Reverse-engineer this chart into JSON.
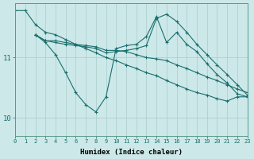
{
  "bg_color": "#cce8e8",
  "grid_color": "#aacccc",
  "line_color": "#1a6e6e",
  "xlabel": "Humidex (Indice chaleur)",
  "yticks": [
    10,
    11
  ],
  "xlim": [
    0,
    23
  ],
  "ylim": [
    9.7,
    11.9
  ],
  "figsize": [
    3.2,
    2.0
  ],
  "dpi": 100,
  "series": [
    {
      "x": [
        0,
        1,
        2,
        3,
        4,
        5,
        6,
        7,
        8,
        9,
        10,
        11,
        12,
        13,
        14,
        15,
        16,
        17,
        18,
        19,
        20,
        21,
        22,
        23
      ],
      "y": [
        11.78,
        11.78,
        11.55,
        11.42,
        11.38,
        11.3,
        11.22,
        11.15,
        11.08,
        11.0,
        10.95,
        10.88,
        10.82,
        10.75,
        10.7,
        10.62,
        10.55,
        10.48,
        10.42,
        10.38,
        10.32,
        10.28,
        10.35,
        10.35
      ]
    },
    {
      "x": [
        2,
        3,
        4,
        5,
        6,
        7,
        8,
        9,
        10,
        11,
        12,
        13,
        14,
        15,
        16,
        17,
        18,
        19,
        20,
        21,
        22,
        23
      ],
      "y": [
        11.38,
        11.25,
        11.05,
        10.75,
        10.42,
        10.22,
        10.1,
        10.35,
        11.15,
        11.2,
        11.22,
        11.35,
        11.68,
        11.25,
        11.42,
        11.22,
        11.1,
        10.9,
        10.72,
        10.58,
        10.4,
        10.35
      ]
    },
    {
      "x": [
        2,
        3,
        4,
        5,
        6,
        7,
        8,
        9,
        10,
        11,
        12,
        13,
        14,
        15,
        16,
        17,
        18,
        19,
        20,
        21,
        22,
        23
      ],
      "y": [
        11.38,
        11.28,
        11.28,
        11.25,
        11.22,
        11.2,
        11.18,
        11.12,
        11.12,
        11.1,
        11.05,
        11.0,
        10.98,
        10.95,
        10.88,
        10.82,
        10.75,
        10.68,
        10.62,
        10.55,
        10.48,
        10.42
      ]
    },
    {
      "x": [
        2,
        3,
        4,
        5,
        6,
        7,
        8,
        9,
        10,
        11,
        12,
        13,
        14,
        15,
        16,
        17,
        18,
        19,
        20,
        21,
        22,
        23
      ],
      "y": [
        11.38,
        11.28,
        11.25,
        11.22,
        11.2,
        11.18,
        11.15,
        11.08,
        11.1,
        11.12,
        11.15,
        11.2,
        11.65,
        11.72,
        11.6,
        11.42,
        11.22,
        11.05,
        10.88,
        10.72,
        10.55,
        10.38
      ]
    }
  ]
}
